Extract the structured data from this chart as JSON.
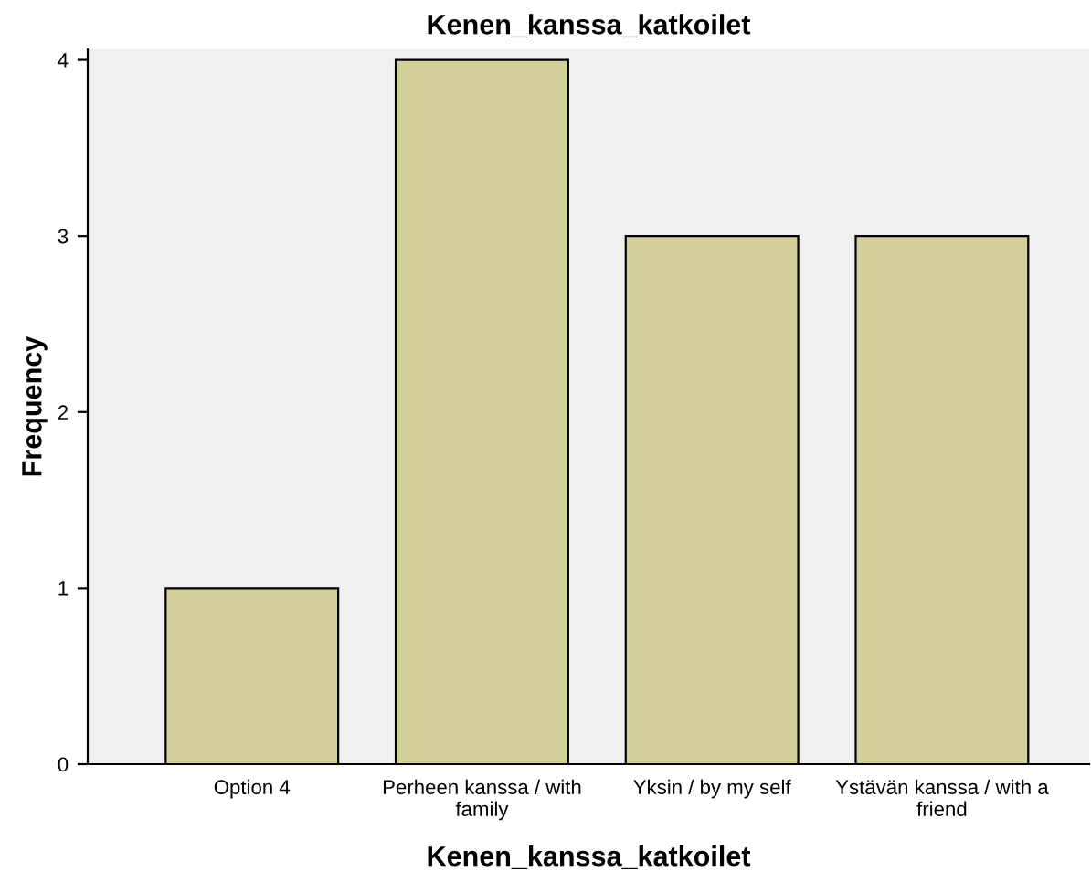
{
  "chart_data": {
    "type": "bar",
    "title": "Kenen_kanssa_katkoilet",
    "xlabel": "Kenen_kanssa_katkoilet",
    "ylabel": "Frequency",
    "categories": [
      "Option 4",
      "Perheen kanssa / with\nfamily",
      "Yksin / by my self",
      "Ystävän kanssa / with a\nfriend"
    ],
    "values": [
      1,
      4,
      3,
      3
    ],
    "color": "#d3cf98",
    "ylim": [
      0,
      4.06
    ],
    "yticks": [
      0,
      1,
      2,
      3,
      4
    ],
    "grid": false,
    "legend": false
  }
}
